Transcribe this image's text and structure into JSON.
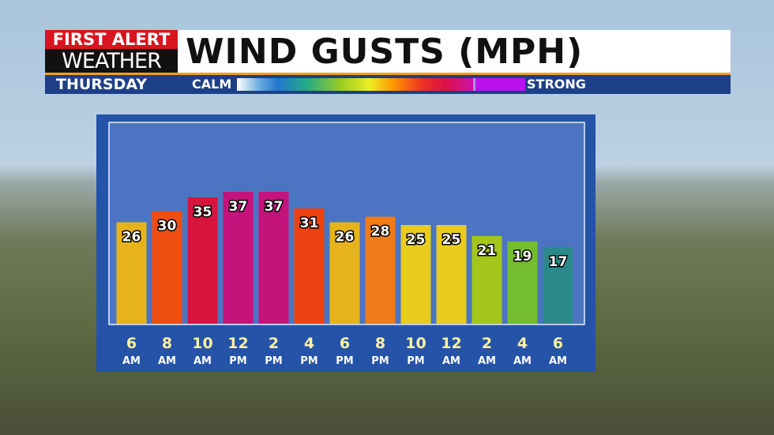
{
  "chart_data": {
    "type": "bar",
    "brand": [
      "FIRST ALERT",
      "WEATHER"
    ],
    "title": "WIND GUSTS (MPH)",
    "day": "THURSDAY",
    "scale_low": "CALM",
    "scale_high": "STRONG",
    "categories": [
      "6",
      "8",
      "10",
      "12",
      "2",
      "4",
      "6",
      "8",
      "10",
      "12",
      "2",
      "4",
      "6"
    ],
    "periods": [
      "AM",
      "AM",
      "AM",
      "PM",
      "PM",
      "PM",
      "PM",
      "PM",
      "PM",
      "AM",
      "AM",
      "AM",
      "AM"
    ],
    "values": [
      26,
      30,
      35,
      37,
      37,
      31,
      26,
      28,
      25,
      25,
      21,
      19,
      17
    ],
    "colors": [
      "#e6b41a",
      "#ee4e12",
      "#d6143e",
      "#c5137c",
      "#c5137c",
      "#ee4214",
      "#e6b41a",
      "#ee7c18",
      "#e8cc1e",
      "#e8cc1e",
      "#a4c61c",
      "#74bc30",
      "#2a8a8a"
    ]
  }
}
